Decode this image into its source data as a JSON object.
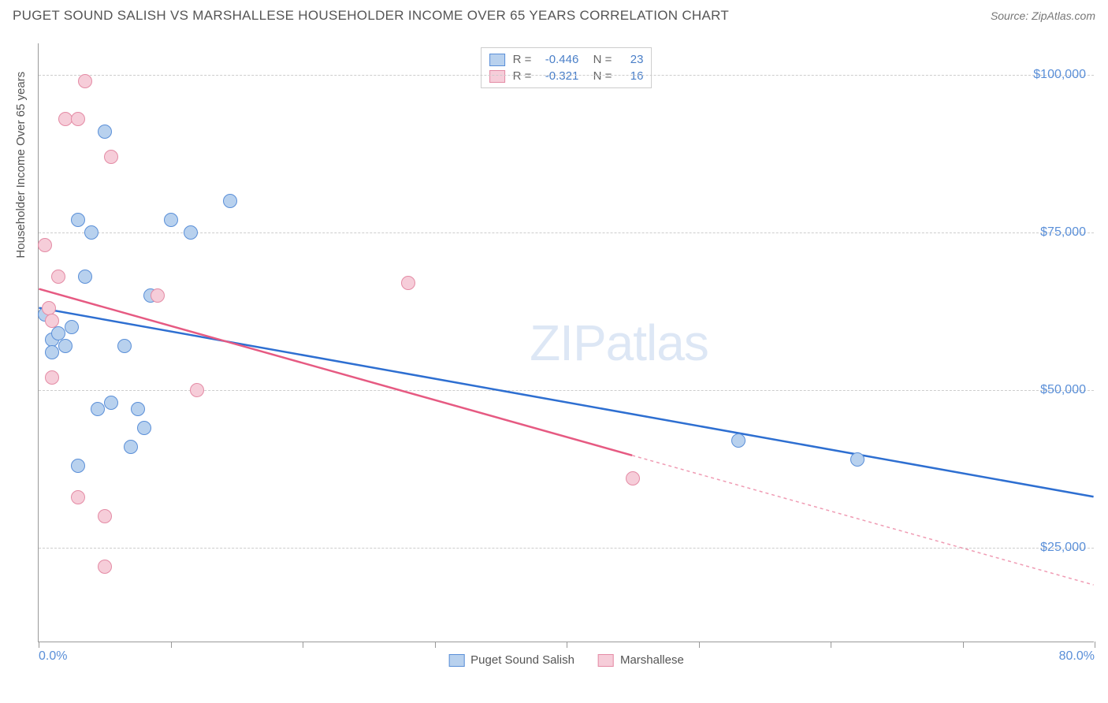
{
  "title": "PUGET SOUND SALISH VS MARSHALLESE HOUSEHOLDER INCOME OVER 65 YEARS CORRELATION CHART",
  "source": "Source: ZipAtlas.com",
  "ylabel": "Householder Income Over 65 years",
  "watermark_a": "ZIP",
  "watermark_b": "atlas",
  "chart": {
    "type": "scatter-with-trend",
    "background_color": "#ffffff",
    "grid_color": "#cccccc",
    "axis_color": "#999999",
    "tick_color": "#5a8fd8",
    "xlim": [
      0,
      80
    ],
    "ylim": [
      10000,
      105000
    ],
    "ytick_values": [
      25000,
      50000,
      75000,
      100000
    ],
    "ytick_labels": [
      "$25,000",
      "$50,000",
      "$75,000",
      "$100,000"
    ],
    "xtick_values": [
      0,
      10,
      20,
      30,
      40,
      50,
      60,
      70,
      80
    ],
    "xlabel_start": "0.0%",
    "xlabel_end": "80.0%",
    "series": [
      {
        "name": "Puget Sound Salish",
        "fill_color": "#b8d1ee",
        "stroke_color": "#5a8fd8",
        "trend_color": "#2e6fd1",
        "r": "-0.446",
        "n": "23",
        "points": [
          {
            "x": 0.5,
            "y": 62000
          },
          {
            "x": 1.0,
            "y": 58000
          },
          {
            "x": 1.0,
            "y": 56000
          },
          {
            "x": 1.5,
            "y": 59000
          },
          {
            "x": 2.0,
            "y": 57000
          },
          {
            "x": 2.5,
            "y": 60000
          },
          {
            "x": 3.0,
            "y": 77000
          },
          {
            "x": 4.0,
            "y": 75000
          },
          {
            "x": 5.0,
            "y": 91000
          },
          {
            "x": 3.5,
            "y": 68000
          },
          {
            "x": 4.5,
            "y": 47000
          },
          {
            "x": 5.5,
            "y": 48000
          },
          {
            "x": 6.5,
            "y": 57000
          },
          {
            "x": 7.0,
            "y": 41000
          },
          {
            "x": 7.5,
            "y": 47000
          },
          {
            "x": 8.0,
            "y": 44000
          },
          {
            "x": 8.5,
            "y": 65000
          },
          {
            "x": 10.0,
            "y": 77000
          },
          {
            "x": 11.5,
            "y": 75000
          },
          {
            "x": 14.5,
            "y": 80000
          },
          {
            "x": 3.0,
            "y": 38000
          },
          {
            "x": 53.0,
            "y": 42000
          },
          {
            "x": 62.0,
            "y": 39000
          }
        ],
        "trend": {
          "x1": 0,
          "y1": 63000,
          "x2": 80,
          "y2": 33000,
          "solid_until_x": 80
        }
      },
      {
        "name": "Marshallese",
        "fill_color": "#f6cdd9",
        "stroke_color": "#e48ba5",
        "trend_color": "#e65a82",
        "r": "-0.321",
        "n": "16",
        "points": [
          {
            "x": 0.5,
            "y": 73000
          },
          {
            "x": 0.8,
            "y": 63000
          },
          {
            "x": 1.0,
            "y": 61000
          },
          {
            "x": 1.0,
            "y": 52000
          },
          {
            "x": 1.5,
            "y": 68000
          },
          {
            "x": 2.0,
            "y": 93000
          },
          {
            "x": 3.0,
            "y": 93000
          },
          {
            "x": 3.5,
            "y": 99000
          },
          {
            "x": 5.5,
            "y": 87000
          },
          {
            "x": 3.0,
            "y": 33000
          },
          {
            "x": 5.0,
            "y": 30000
          },
          {
            "x": 5.0,
            "y": 22000
          },
          {
            "x": 9.0,
            "y": 65000
          },
          {
            "x": 12.0,
            "y": 50000
          },
          {
            "x": 28.0,
            "y": 67000
          },
          {
            "x": 45.0,
            "y": 36000
          }
        ],
        "trend": {
          "x1": 0,
          "y1": 66000,
          "x2": 80,
          "y2": 19000,
          "solid_until_x": 45
        }
      }
    ]
  }
}
